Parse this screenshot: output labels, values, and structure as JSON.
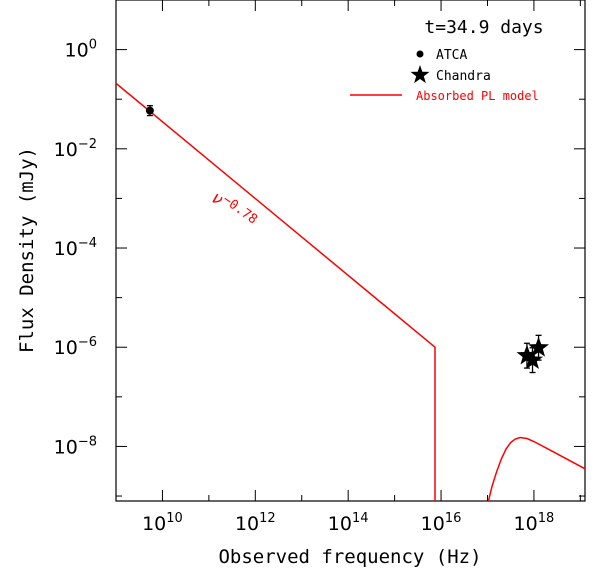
{
  "chart_data": {
    "type": "scatter",
    "title": "t=34.9 days",
    "xlabel": "Observed frequency (Hz)",
    "ylabel": "Flux Density (mJy)",
    "xscale": "log",
    "yscale": "log",
    "xlim_log10": [
      9,
      19.1
    ],
    "ylim_log10": [
      -9.1,
      1
    ],
    "xticks": [
      {
        "base": "10",
        "exp": "10",
        "log": 10
      },
      {
        "base": "10",
        "exp": "12",
        "log": 12
      },
      {
        "base": "10",
        "exp": "14",
        "log": 14
      },
      {
        "base": "10",
        "exp": "16",
        "log": 16
      },
      {
        "base": "10",
        "exp": "18",
        "log": 18
      }
    ],
    "yticks": [
      {
        "base": "10",
        "exp": "0",
        "log": 0
      },
      {
        "base": "10",
        "exp": "−2",
        "log": -2
      },
      {
        "base": "10",
        "exp": "−4",
        "log": -4
      },
      {
        "base": "10",
        "exp": "−6",
        "log": -6
      },
      {
        "base": "10",
        "exp": "−8",
        "log": -8
      }
    ],
    "legend": {
      "placement": "top-right",
      "entries": [
        "ATCA",
        "Chandra",
        "Absorbed PL model"
      ]
    },
    "series": [
      {
        "name": "ATCA",
        "marker": "circle",
        "points": [
          {
            "log_x": 9.73,
            "log_y": -1.23,
            "err_up": 0.1,
            "err_down": 0.1
          }
        ]
      },
      {
        "name": "Chandra",
        "marker": "star",
        "points": [
          {
            "log_x": 17.85,
            "log_y": -6.17,
            "err_up": 0.25,
            "err_down": 0.25
          },
          {
            "log_x": 17.97,
            "log_y": -6.26,
            "err_up": 0.25,
            "err_down": 0.25
          },
          {
            "log_x": 18.1,
            "log_y": -6.01,
            "err_up": 0.25,
            "err_down": 0.25
          }
        ]
      }
    ],
    "model": {
      "name": "Absorbed PL model",
      "color": "#ff0000",
      "annotation": {
        "symbol": "ν",
        "exponent": "−0.78"
      },
      "segments": [
        [
          [
            9.0,
            -0.68
          ],
          [
            15.87,
            -6.0
          ],
          [
            15.87,
            -9.1
          ]
        ],
        [
          [
            17.02,
            -9.1
          ],
          [
            17.1,
            -8.8
          ],
          [
            17.2,
            -8.5
          ],
          [
            17.3,
            -8.25
          ],
          [
            17.4,
            -8.05
          ],
          [
            17.5,
            -7.92
          ],
          [
            17.6,
            -7.85
          ],
          [
            17.7,
            -7.82
          ],
          [
            17.85,
            -7.84
          ],
          [
            18.0,
            -7.9
          ],
          [
            18.3,
            -8.05
          ],
          [
            18.7,
            -8.25
          ],
          [
            19.1,
            -8.45
          ]
        ]
      ]
    },
    "colors": {
      "model": "#ff0000",
      "data": "#000000"
    }
  }
}
